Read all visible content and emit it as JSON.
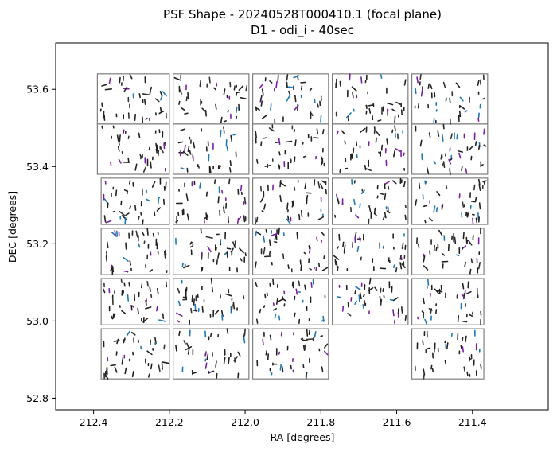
{
  "chart_data": {
    "type": "scatter",
    "title": "PSF Shape - 20240528T000410.1 (focal plane)",
    "subtitle": "D1 - odi_i - 40sec",
    "xlabel": "RA [degrees]",
    "ylabel": "DEC [degrees]",
    "xlim": [
      212.5,
      211.2
    ],
    "ylim": [
      52.77,
      53.72
    ],
    "x_inverted": true,
    "grid": false,
    "xticks": [
      212.4,
      212.2,
      212.0,
      211.8,
      211.6,
      211.4
    ],
    "xtick_labels": [
      "212.4",
      "212.2",
      "212.0",
      "211.8",
      "211.6",
      "211.4"
    ],
    "yticks": [
      52.8,
      53.0,
      53.2,
      53.4,
      53.6
    ],
    "ytick_labels": [
      "52.8",
      "53.0",
      "53.2",
      "53.4",
      "53.6"
    ],
    "detector_cells": [
      {
        "ra": [
          212.39,
          212.2
        ],
        "dec": [
          53.51,
          53.64
        ]
      },
      {
        "ra": [
          212.19,
          211.99
        ],
        "dec": [
          53.51,
          53.64
        ]
      },
      {
        "ra": [
          211.98,
          211.78
        ],
        "dec": [
          53.51,
          53.64
        ]
      },
      {
        "ra": [
          211.77,
          211.57
        ],
        "dec": [
          53.51,
          53.64
        ]
      },
      {
        "ra": [
          211.56,
          211.36
        ],
        "dec": [
          53.51,
          53.64
        ]
      },
      {
        "ra": [
          212.39,
          212.2
        ],
        "dec": [
          53.38,
          53.51
        ]
      },
      {
        "ra": [
          212.19,
          211.99
        ],
        "dec": [
          53.38,
          53.51
        ]
      },
      {
        "ra": [
          211.98,
          211.78
        ],
        "dec": [
          53.38,
          53.51
        ]
      },
      {
        "ra": [
          211.77,
          211.57
        ],
        "dec": [
          53.38,
          53.51
        ]
      },
      {
        "ra": [
          211.56,
          211.36
        ],
        "dec": [
          53.38,
          53.51
        ]
      },
      {
        "ra": [
          212.38,
          212.2
        ],
        "dec": [
          53.25,
          53.37
        ]
      },
      {
        "ra": [
          212.19,
          211.99
        ],
        "dec": [
          53.25,
          53.37
        ]
      },
      {
        "ra": [
          211.98,
          211.78
        ],
        "dec": [
          53.25,
          53.37
        ]
      },
      {
        "ra": [
          211.77,
          211.57
        ],
        "dec": [
          53.25,
          53.37
        ]
      },
      {
        "ra": [
          211.56,
          211.36
        ],
        "dec": [
          53.25,
          53.37
        ]
      },
      {
        "ra": [
          212.38,
          212.2
        ],
        "dec": [
          53.12,
          53.24
        ]
      },
      {
        "ra": [
          212.19,
          211.99
        ],
        "dec": [
          53.12,
          53.24
        ]
      },
      {
        "ra": [
          211.98,
          211.78
        ],
        "dec": [
          53.12,
          53.24
        ]
      },
      {
        "ra": [
          211.77,
          211.57
        ],
        "dec": [
          53.12,
          53.24
        ]
      },
      {
        "ra": [
          211.56,
          211.37
        ],
        "dec": [
          52.99,
          53.11
        ]
      },
      {
        "ra": [
          212.38,
          212.2
        ],
        "dec": [
          52.99,
          53.11
        ]
      },
      {
        "ra": [
          212.19,
          211.99
        ],
        "dec": [
          52.99,
          53.11
        ]
      },
      {
        "ra": [
          211.98,
          211.78
        ],
        "dec": [
          52.99,
          53.11
        ]
      },
      {
        "ra": [
          211.77,
          211.57
        ],
        "dec": [
          52.99,
          53.11
        ]
      },
      {
        "ra": [
          211.56,
          211.37
        ],
        "dec": [
          53.12,
          53.24
        ]
      },
      {
        "ra": [
          212.38,
          212.2
        ],
        "dec": [
          52.85,
          52.98
        ]
      },
      {
        "ra": [
          212.19,
          211.99
        ],
        "dec": [
          52.85,
          52.98
        ]
      },
      {
        "ra": [
          211.98,
          211.78
        ],
        "dec": [
          52.85,
          52.98
        ]
      },
      {
        "ra": [
          211.56,
          211.37
        ],
        "dec": [
          52.85,
          52.98
        ]
      }
    ]
  }
}
